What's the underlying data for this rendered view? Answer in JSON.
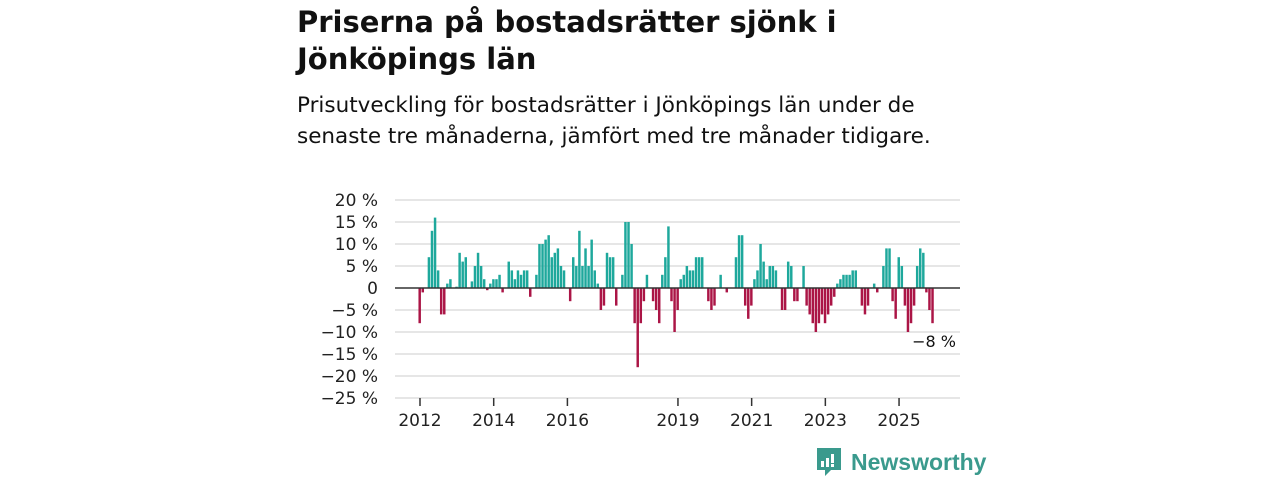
{
  "header": {
    "title": "Priserna på bostadsrätter sjönk i Jönköpings län",
    "subtitle": "Prisutveckling för bostadsrätter i Jönköpings län under de senaste tre månaderna, jämfört med tre månader tidigare."
  },
  "brand": {
    "name": "Newsworthy",
    "icon": "newsworthy-logo-icon",
    "color": "#3a9a8d"
  },
  "chart_data": {
    "type": "bar",
    "title": "",
    "xlabel": "",
    "ylabel": "",
    "ylim": [
      -25,
      20
    ],
    "y_ticks": [
      20,
      15,
      10,
      5,
      0,
      -5,
      -10,
      -15,
      -20,
      -25
    ],
    "y_tick_labels": [
      "20 %",
      "15 %",
      "10 %",
      "5 %",
      "0",
      "−5 %",
      "−10 %",
      "−15 %",
      "−20 %",
      "−25 %"
    ],
    "x_tick_labels": [
      "2012",
      "2014",
      "2016",
      "2019",
      "2021",
      "2023",
      "2025"
    ],
    "start_year": 2012,
    "frequency": "monthly",
    "colors": {
      "positive": "#1ea89c",
      "negative": "#ab1546"
    },
    "annotation": "−8 %",
    "grid": true,
    "values": [
      -8,
      -1,
      0,
      7,
      13,
      16,
      4,
      -6,
      -6,
      1,
      2,
      0,
      0.3,
      8,
      6,
      7,
      0,
      1.5,
      5,
      8,
      5,
      2,
      -0.5,
      1,
      2,
      2,
      3,
      -1,
      0,
      6,
      4,
      2,
      4,
      3,
      4,
      4,
      -2,
      0,
      3,
      10,
      10,
      11,
      12,
      7,
      8,
      9,
      5,
      4,
      0,
      -3,
      7,
      5,
      13,
      5,
      9,
      5,
      11,
      4,
      1,
      -5,
      -4,
      8,
      7,
      7,
      -4,
      0,
      3,
      15,
      15,
      10,
      -8,
      -18,
      -8,
      -3,
      3,
      0,
      -3,
      -5,
      -8,
      3,
      7,
      14,
      -3,
      -10,
      -5,
      2,
      3,
      5,
      4,
      4,
      7,
      7,
      7,
      0,
      -3,
      -5,
      -4,
      0,
      3,
      0,
      -1,
      0,
      0,
      7,
      12,
      12,
      -4,
      -7,
      -4,
      2,
      4,
      10,
      6,
      2,
      5,
      5,
      4,
      0,
      -5,
      -5,
      6,
      5,
      -3,
      -3,
      0,
      5,
      -4,
      -6,
      -8,
      -10,
      -8,
      -6,
      -8,
      -6,
      -4,
      -2,
      1,
      2,
      3,
      3,
      3,
      4,
      4,
      0,
      -4,
      -6,
      -4,
      0,
      1,
      -1,
      0,
      5,
      9,
      9,
      -3,
      -7,
      7,
      5,
      -4,
      -10,
      -8,
      -4,
      5,
      9,
      8,
      -1,
      -5,
      -8
    ]
  }
}
